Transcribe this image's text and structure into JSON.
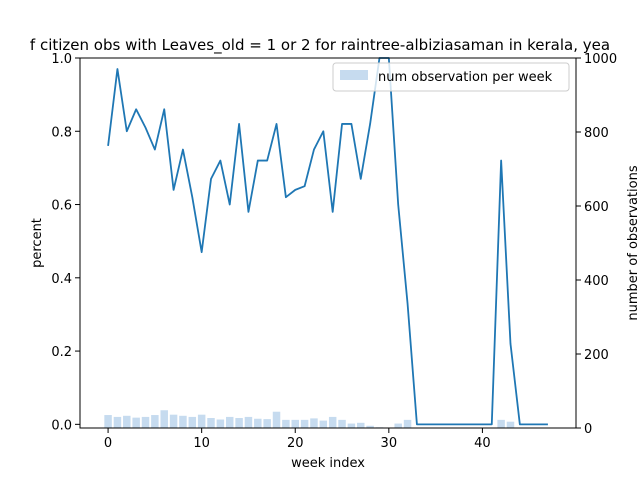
{
  "chart_data": {
    "type": "bar+line",
    "title": "f citizen obs with Leaves_old = 1 or 2 for raintree-albiziasaman in kerala, yea",
    "xlabel": "week index",
    "ylabel_left": "percent",
    "ylabel_right": "number of observations",
    "xlim": [
      -3,
      50
    ],
    "ylim_left": [
      -0.01,
      1.0
    ],
    "ylim_right": [
      0,
      1000
    ],
    "x_ticks": [
      0,
      10,
      20,
      30,
      40
    ],
    "y_ticks_left": [
      0.0,
      0.2,
      0.4,
      0.6,
      0.8,
      1.0
    ],
    "y_ticks_right": [
      0,
      200,
      400,
      600,
      800,
      1000
    ],
    "legend": {
      "placement": "top-right",
      "entries": [
        "num observation per week"
      ]
    },
    "colors": {
      "line": "#1f77b4",
      "bars": "#c6dbef",
      "axis": "#000000"
    },
    "bars": {
      "name": "num observation per week",
      "x": [
        0,
        1,
        2,
        3,
        4,
        5,
        6,
        7,
        8,
        9,
        10,
        11,
        12,
        13,
        14,
        15,
        16,
        17,
        18,
        19,
        20,
        21,
        22,
        23,
        24,
        25,
        26,
        27,
        28,
        29,
        30,
        31,
        32,
        33,
        34,
        35,
        36,
        37,
        38,
        39,
        40,
        41,
        42,
        43,
        44,
        45,
        46,
        47
      ],
      "values": [
        35,
        30,
        33,
        28,
        30,
        35,
        48,
        36,
        33,
        30,
        36,
        27,
        23,
        30,
        27,
        30,
        25,
        24,
        44,
        22,
        22,
        22,
        26,
        20,
        30,
        22,
        12,
        14,
        6,
        2,
        0,
        12,
        22,
        0,
        0,
        0,
        0,
        0,
        0,
        0,
        0,
        0,
        22,
        17,
        0,
        0,
        0,
        0
      ]
    },
    "line": {
      "x": [
        0,
        1,
        2,
        3,
        4,
        5,
        6,
        7,
        8,
        9,
        10,
        11,
        12,
        13,
        14,
        15,
        16,
        17,
        18,
        19,
        20,
        21,
        22,
        23,
        24,
        25,
        26,
        27,
        28,
        29,
        30,
        31,
        32,
        33,
        34,
        35,
        36,
        37,
        38,
        39,
        40,
        41,
        42,
        43,
        44,
        45,
        46,
        47
      ],
      "values": [
        0.76,
        0.97,
        0.8,
        0.86,
        0.81,
        0.75,
        0.86,
        0.64,
        0.75,
        0.62,
        0.47,
        0.67,
        0.72,
        0.6,
        0.82,
        0.58,
        0.72,
        0.72,
        0.82,
        0.62,
        0.64,
        0.65,
        0.75,
        0.8,
        0.58,
        0.82,
        0.82,
        0.67,
        0.82,
        1.0,
        1.0,
        0.6,
        0.33,
        0.0,
        0.0,
        0.0,
        0.0,
        0.0,
        0.0,
        0.0,
        0.0,
        0.0,
        0.72,
        0.22,
        0.0,
        0.0,
        0.0,
        0.0
      ]
    }
  }
}
